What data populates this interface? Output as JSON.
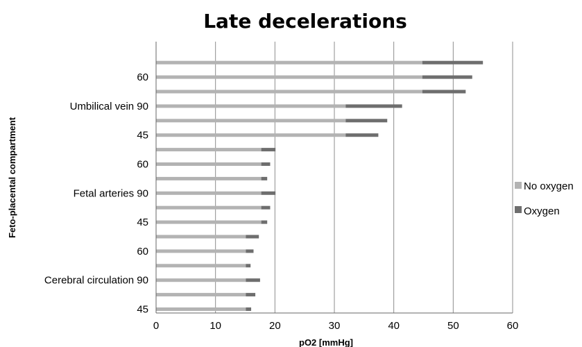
{
  "chart_data": {
    "type": "bar",
    "orientation": "horizontal",
    "stacked": true,
    "title": "Late decelerations",
    "xlabel": "pO2 [mmHg]",
    "ylabel": "Feto-placental compartment",
    "xlim": [
      0,
      60
    ],
    "x_ticks": [
      0,
      10,
      20,
      30,
      40,
      50,
      60
    ],
    "grid": "vertical",
    "legend_position": "right",
    "y_tick_labels": [
      "60",
      "Umbilical vein 90",
      "45",
      "60",
      "Fetal arteries 90",
      "45",
      "60",
      "Cerebral circulation 90",
      "45"
    ],
    "rows": 18,
    "colors": {
      "No oxygen": "#b3b3b3",
      "Oxygen": "#6e6e6e"
    },
    "series": [
      {
        "name": "No oxygen",
        "values": [
          44.8,
          44.8,
          44.8,
          31.9,
          31.9,
          31.9,
          17.7,
          17.7,
          17.7,
          17.7,
          17.7,
          17.7,
          15.1,
          15.1,
          15.1,
          15.1,
          15.1,
          15.1
        ]
      },
      {
        "name": "Oxygen",
        "values": [
          10.2,
          8.4,
          7.3,
          9.5,
          7.0,
          5.5,
          2.4,
          1.5,
          1.0,
          2.4,
          1.5,
          1.0,
          2.2,
          1.3,
          0.8,
          2.4,
          1.6,
          0.9
        ]
      }
    ]
  }
}
